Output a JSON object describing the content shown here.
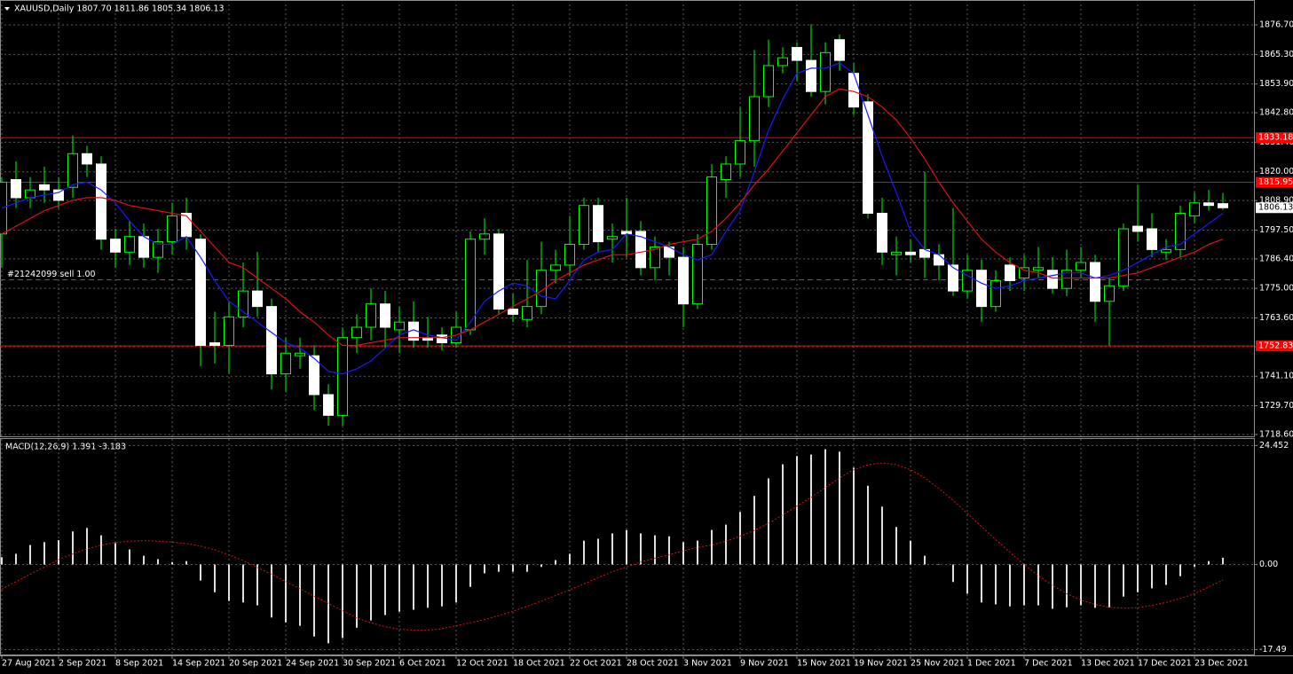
{
  "chart_data": [
    {
      "type": "candlestick",
      "title": "XAUUSD,Daily  1807.70 1811.86 1805.34 1806.13",
      "categories": [
        "27 Aug 2021",
        null,
        null,
        null,
        "2 Sep 2021",
        null,
        null,
        null,
        "8 Sep 2021",
        null,
        null,
        null,
        "14 Sep 2021",
        null,
        null,
        null,
        "20 Sep 2021",
        null,
        null,
        null,
        "24 Sep 2021",
        null,
        null,
        null,
        "30 Sep 2021",
        null,
        null,
        null,
        "6 Oct 2021",
        null,
        null,
        null,
        "12 Oct 2021",
        null,
        null,
        null,
        "18 Oct 2021",
        null,
        null,
        null,
        "22 Oct 2021",
        null,
        null,
        null,
        "28 Oct 2021",
        null,
        null,
        null,
        "3 Nov 2021",
        null,
        null,
        null,
        "9 Nov 2021",
        null,
        null,
        null,
        "15 Nov 2021",
        null,
        null,
        null,
        "19 Nov 2021",
        null,
        null,
        null,
        "25 Nov 2021",
        null,
        null,
        null,
        "1 Dec 2021",
        null,
        null,
        null,
        "7 Dec 2021",
        null,
        null,
        null,
        "13 Dec 2021",
        null,
        null,
        null,
        "17 Dec 2021",
        null,
        null,
        null,
        "23 Dec 2021",
        null,
        null
      ],
      "open": [
        1796,
        1817,
        1810,
        1815,
        1813,
        1814,
        1827,
        1823,
        1794,
        1789,
        1795,
        1787,
        1793,
        1804,
        1794,
        1754,
        1753,
        1764,
        1774,
        1768,
        1742,
        1749,
        1749,
        1734,
        1726,
        1756,
        1760,
        1769,
        1759,
        1762,
        1756,
        1757,
        1754,
        1759,
        1794,
        1796,
        1767,
        1763,
        1768,
        1782,
        1784,
        1792,
        1807,
        1794,
        1797,
        1797,
        1783,
        1791,
        1787,
        1769,
        1792,
        1817,
        1823,
        1832,
        1849,
        1861,
        1868,
        1863,
        1851,
        1871,
        1858,
        1847,
        1804,
        1788,
        1789,
        1790,
        1788,
        1784,
        1774,
        1782,
        1768,
        1784,
        1779,
        1782,
        1782,
        1775,
        1782,
        1785,
        1770,
        1776,
        1799,
        1798,
        1789,
        1790,
        1803,
        1808,
        1807.7
      ],
      "high": [
        1818,
        1824,
        1818,
        1822,
        1818,
        1834,
        1830,
        1826,
        1798,
        1801,
        1800,
        1798,
        1808,
        1810,
        1796,
        1766,
        1770,
        1785,
        1789,
        1771,
        1756,
        1756,
        1753,
        1738,
        1760,
        1765,
        1775,
        1774,
        1768,
        1770,
        1764,
        1760,
        1766,
        1797,
        1802,
        1798,
        1773,
        1786,
        1793,
        1790,
        1803,
        1810,
        1810,
        1800,
        1810,
        1801,
        1795,
        1793,
        1791,
        1796,
        1823,
        1826,
        1845,
        1867,
        1871,
        1868,
        1870,
        1877,
        1870,
        1873,
        1862,
        1850,
        1810,
        1795,
        1794,
        1820,
        1792,
        1806,
        1788,
        1786,
        1782,
        1787,
        1788,
        1791,
        1787,
        1790,
        1791,
        1788,
        1779,
        1800,
        1815,
        1804,
        1794,
        1807,
        1812,
        1813,
        1811.86
      ],
      "low": [
        1783,
        1806,
        1806,
        1808,
        1806,
        1810,
        1818,
        1790,
        1783,
        1784,
        1783,
        1781,
        1788,
        1790,
        1745,
        1746,
        1742,
        1760,
        1764,
        1736,
        1735,
        1744,
        1728,
        1722,
        1722,
        1750,
        1755,
        1752,
        1750,
        1752,
        1752,
        1751,
        1752,
        1757,
        1788,
        1765,
        1762,
        1760,
        1765,
        1777,
        1780,
        1790,
        1789,
        1785,
        1787,
        1780,
        1778,
        1780,
        1760,
        1767,
        1790,
        1810,
        1818,
        1822,
        1845,
        1858,
        1855,
        1849,
        1846,
        1859,
        1842,
        1802,
        1784,
        1780,
        1785,
        1779,
        1778,
        1772,
        1771,
        1762,
        1766,
        1774,
        1774,
        1779,
        1773,
        1772,
        1779,
        1762,
        1753,
        1774,
        1793,
        1787,
        1786,
        1787,
        1800,
        1805,
        1805.34
      ],
      "close": [
        1816,
        1810,
        1813,
        1813,
        1809,
        1827,
        1823,
        1794,
        1789,
        1795,
        1787,
        1793,
        1803,
        1795,
        1753,
        1753,
        1764,
        1774,
        1768,
        1742,
        1750,
        1750,
        1734,
        1726,
        1756,
        1760,
        1769,
        1760,
        1762,
        1755,
        1755,
        1754,
        1760,
        1794,
        1796,
        1767,
        1765,
        1768,
        1782,
        1784,
        1792,
        1807,
        1793,
        1795,
        1796,
        1783,
        1791,
        1787,
        1769,
        1792,
        1818,
        1823,
        1832,
        1849,
        1861,
        1864,
        1863,
        1851,
        1866,
        1863,
        1845,
        1804,
        1789,
        1789,
        1788,
        1787,
        1784,
        1774,
        1782,
        1768,
        1778,
        1778,
        1783,
        1783,
        1775,
        1782,
        1785,
        1770,
        1776,
        1798,
        1797,
        1790,
        1790,
        1804,
        1808,
        1807,
        1806.13
      ],
      "lines": [
        {
          "color": "#1a1aff",
          "values": [
            1806,
            1808,
            1810,
            1811,
            1812,
            1815,
            1816,
            1813,
            1808,
            1801,
            1795,
            1792,
            1792,
            1795,
            1787,
            1778,
            1770,
            1766,
            1762,
            1758,
            1754,
            1752,
            1748,
            1743,
            1742,
            1744,
            1747,
            1752,
            1757,
            1759,
            1757,
            1756,
            1755,
            1762,
            1770,
            1774,
            1777,
            1776,
            1772,
            1771,
            1778,
            1786,
            1789,
            1790,
            1796,
            1795,
            1793,
            1791,
            1788,
            1786,
            1788,
            1797,
            1805,
            1820,
            1836,
            1848,
            1858,
            1860,
            1860,
            1862,
            1858,
            1842,
            1826,
            1812,
            1797,
            1790,
            1788,
            1783,
            1780,
            1777,
            1775,
            1776,
            1778,
            1779,
            1780,
            1781,
            1781,
            1779,
            1780,
            1782,
            1785,
            1788,
            1791,
            1792,
            1796,
            1800,
            1804
          ]
        },
        {
          "color": "#e01010",
          "values": [
            1796,
            1799,
            1802,
            1805,
            1807,
            1809,
            1810,
            1810,
            1809,
            1807,
            1806,
            1805,
            1804,
            1803,
            1797,
            1791,
            1785,
            1783,
            1779,
            1775,
            1771,
            1766,
            1762,
            1757,
            1753,
            1753,
            1754,
            1755,
            1756,
            1756,
            1756,
            1756,
            1757,
            1759,
            1762,
            1765,
            1768,
            1771,
            1774,
            1778,
            1781,
            1784,
            1786,
            1788,
            1788,
            1789,
            1790,
            1792,
            1793,
            1794,
            1797,
            1802,
            1808,
            1815,
            1821,
            1828,
            1835,
            1842,
            1849,
            1852,
            1851,
            1849,
            1845,
            1840,
            1833,
            1825,
            1816,
            1808,
            1801,
            1794,
            1789,
            1785,
            1782,
            1781,
            1779,
            1779,
            1779,
            1779,
            1779,
            1780,
            1781,
            1783,
            1785,
            1787,
            1789,
            1792,
            1794
          ]
        }
      ],
      "levels": [
        {
          "value": 1833.18,
          "label": "1833.18",
          "color": "#ff0000"
        },
        {
          "value": 1815.95,
          "label": "1815.95",
          "color": "#ff0000"
        },
        {
          "value": 1752.83,
          "label": "1752.83",
          "color": "#ff0000"
        }
      ],
      "order": {
        "value": 1778.3,
        "label": "#21242099 sell 1.00",
        "color": "#00a000"
      },
      "last": {
        "value": 1806.13,
        "label": "1806.13"
      },
      "ylim": [
        1717.9,
        1884.6
      ],
      "yticks": [
        {
          "value": 1876.7,
          "label": "1876.70"
        },
        {
          "value": 1865.3,
          "label": "1865.30"
        },
        {
          "value": 1853.9,
          "label": "1853.90"
        },
        {
          "value": 1842.8,
          "label": "1842.80"
        },
        {
          "value": 1831.4,
          "label": "1831.40"
        },
        {
          "value": 1820,
          "label": "1820.00"
        },
        {
          "value": 1808.9,
          "label": "1808.90"
        },
        {
          "value": 1797.5,
          "label": "1797.50"
        },
        {
          "value": 1786.4,
          "label": "1786.40"
        },
        {
          "value": 1775,
          "label": "1775.00"
        },
        {
          "value": 1763.6,
          "label": "1763.60"
        },
        {
          "value": 1752.5,
          "label": "1752.50"
        },
        {
          "value": 1741.1,
          "label": "1741.10"
        },
        {
          "value": 1729.7,
          "label": "1729.70"
        },
        {
          "value": 1718.6,
          "label": "1718.60"
        }
      ],
      "grid": true,
      "up_color": "#00ff00",
      "down_color": "#ffffff"
    },
    {
      "type": "macd",
      "title": "MACD(12,26,9) 1.391 -3.183",
      "values": [
        1.5,
        2.2,
        4,
        4.6,
        5,
        6.8,
        7.5,
        6,
        4.4,
        3.1,
        1.8,
        1.1,
        0.5,
        0.7,
        -3.3,
        -5.7,
        -7.5,
        -7.8,
        -8.4,
        -10.9,
        -11.9,
        -12.6,
        -14.8,
        -16.2,
        -15.1,
        -13,
        -11.5,
        -10.4,
        -9.7,
        -9.3,
        -8.9,
        -8.6,
        -7.8,
        -4.6,
        -1.8,
        -1.5,
        -1.5,
        -1.5,
        -0.5,
        0.9,
        2.2,
        4.9,
        5.3,
        6.4,
        7.1,
        6.4,
        6,
        5.8,
        4.6,
        4.9,
        7.1,
        8.2,
        10.8,
        14.1,
        17.7,
        20.6,
        22.3,
        22.6,
        23.7,
        23.2,
        19.9,
        16.2,
        11.9,
        7.7,
        4.9,
        1.8,
        0,
        -3.6,
        -6,
        -7.8,
        -8.2,
        -8.6,
        -8.4,
        -8.4,
        -9.1,
        -8.8,
        -8.4,
        -8.9,
        -8.8,
        -6.6,
        -5.7,
        -4.9,
        -4.2,
        -2.4,
        -0.5,
        0.7,
        1.391
      ],
      "color": "#e0e0e0",
      "signal": {
        "color": "#e01010",
        "values": [
          -5.1,
          -3.5,
          -2,
          -0.5,
          1,
          2.2,
          3.2,
          4,
          4.5,
          4.8,
          4.9,
          4.8,
          4.6,
          4.3,
          3.8,
          3,
          2,
          0.8,
          -0.6,
          -2,
          -3.5,
          -5,
          -6.5,
          -8,
          -9.5,
          -11,
          -12,
          -12.8,
          -13.3,
          -13.5,
          -13.5,
          -13.2,
          -12.6,
          -12,
          -11.3,
          -10.5,
          -9.6,
          -8.6,
          -7.5,
          -6.4,
          -5.2,
          -4,
          -2.7,
          -1.5,
          -0.5,
          0.5,
          1.3,
          2,
          2.8,
          3.5,
          4,
          4.8,
          5.8,
          7,
          8.5,
          10.2,
          12,
          13.8,
          15.8,
          17.8,
          19.5,
          20.5,
          20.9,
          20.5,
          19.5,
          17.8,
          15.6,
          13.2,
          10.5,
          7.8,
          5.1,
          2.5,
          0,
          -2.3,
          -4.3,
          -6,
          -7.3,
          -8.2,
          -8.8,
          -9,
          -8.9,
          -8.4,
          -7.8,
          -7,
          -6,
          -4.6,
          -3.183
        ]
      },
      "ylim": [
        -18.5,
        25.8
      ],
      "yticks": [
        24.452,
        {
          "value": 0,
          "label": "0.00"
        },
        -17.49
      ],
      "grid": true
    }
  ]
}
